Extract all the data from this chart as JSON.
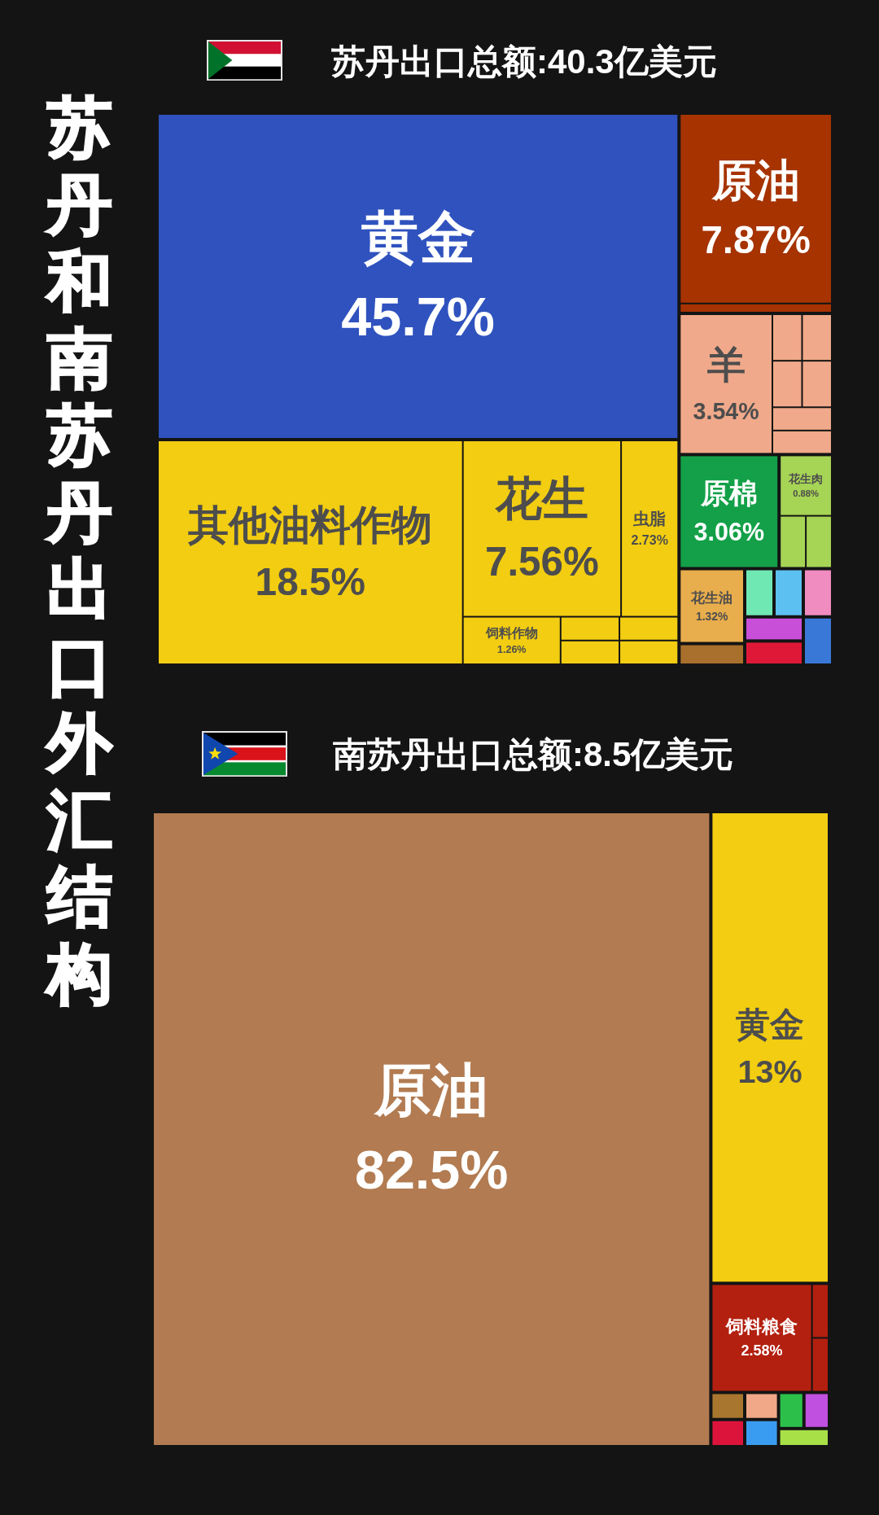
{
  "chart_data": [
    {
      "type": "other",
      "title": "苏丹和南苏丹出口外汇结构"
    },
    {
      "type": "other",
      "title": "苏丹出口总额:40.3亿美元",
      "categories": [
        "黄金",
        "其他油料作物",
        "花生",
        "虫脂",
        "饲料作物",
        null,
        null,
        null,
        null,
        "原油",
        null,
        "羊",
        null,
        null,
        null,
        null,
        null,
        null,
        "原棉",
        "花生肉",
        null,
        null,
        "花生油",
        null,
        null,
        null,
        null,
        null,
        null,
        null
      ],
      "values": [
        45.7,
        18.5,
        7.56,
        2.73,
        1.26,
        null,
        null,
        null,
        null,
        7.87,
        null,
        3.54,
        null,
        null,
        null,
        null,
        null,
        null,
        3.06,
        0.88,
        null,
        null,
        1.32,
        null,
        null,
        null,
        null,
        null,
        null,
        null
      ],
      "value_labels": [
        "45.7%",
        "18.5%",
        "7.56%",
        "2.73%",
        "1.26%",
        null,
        null,
        null,
        null,
        "7.87%",
        null,
        "3.54%",
        null,
        null,
        null,
        null,
        null,
        null,
        "3.06%",
        "0.88%",
        null,
        null,
        "1.32%",
        null,
        null,
        null,
        null,
        null,
        null,
        null
      ],
      "colors": [
        "#2f52be",
        "#f2cd11",
        "#f2cd11",
        "#f2cd11",
        "#f2cd11",
        "#f2cd11",
        "#f2cd11",
        "#f2cd11",
        "#f2cd11",
        "#a63300",
        "#a63300",
        "#f0a98a",
        "#f0a98a",
        "#f0a98a",
        "#f0a98a",
        "#f0a98a",
        "#f0a98a",
        "#f0a98a",
        "#13a048",
        "#a6d455",
        "#a6d455",
        "#a6d455",
        "#e8ad4c",
        "#a8702c",
        "#70e8b4",
        "#5cc0f0",
        "#f08cc0",
        "#c850d8",
        "#e01838",
        "#3a78d8"
      ]
    },
    {
      "type": "other",
      "title": "南苏丹出口总额:8.5亿美元",
      "categories": [
        "原油",
        "黄金",
        "饲料粮食",
        null,
        null,
        null,
        null,
        null,
        null,
        null,
        null,
        null
      ],
      "values": [
        82.5,
        13,
        2.58,
        null,
        null,
        null,
        null,
        null,
        null,
        null,
        null,
        null
      ],
      "value_labels": [
        "82.5%",
        "13%",
        "2.58%",
        null,
        null,
        null,
        null,
        null,
        null,
        null,
        null,
        null
      ],
      "colors": [
        "#b27b51",
        "#f2cd11",
        "#b3200f",
        "#b3200f",
        "#b3200f",
        "#a8762e",
        "#dc143c",
        "#f0a888",
        "#3a9cf0",
        "#2cc04a",
        "#c050e0",
        "#a8e048"
      ]
    }
  ]
}
